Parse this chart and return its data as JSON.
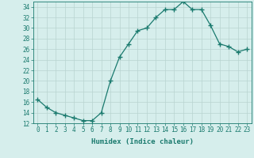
{
  "x": [
    0,
    1,
    2,
    3,
    4,
    5,
    6,
    7,
    8,
    9,
    10,
    11,
    12,
    13,
    14,
    15,
    16,
    17,
    18,
    19,
    20,
    21,
    22,
    23
  ],
  "y": [
    16.5,
    15.0,
    14.0,
    13.5,
    13.0,
    12.5,
    12.5,
    14.0,
    20.0,
    24.5,
    27.0,
    29.5,
    30.0,
    32.0,
    33.5,
    33.5,
    35.0,
    33.5,
    33.5,
    30.5,
    27.0,
    26.5,
    25.5,
    26.0
  ],
  "line_color": "#1a7a6e",
  "marker": "+",
  "marker_size": 4,
  "bg_color": "#d6eeec",
  "grid_color": "#b8d4d0",
  "xlabel": "Humidex (Indice chaleur)",
  "xlim": [
    -0.5,
    23.5
  ],
  "ylim": [
    12,
    35
  ],
  "yticks": [
    12,
    14,
    16,
    18,
    20,
    22,
    24,
    26,
    28,
    30,
    32,
    34
  ],
  "xticks": [
    0,
    1,
    2,
    3,
    4,
    5,
    6,
    7,
    8,
    9,
    10,
    11,
    12,
    13,
    14,
    15,
    16,
    17,
    18,
    19,
    20,
    21,
    22,
    23
  ],
  "xtick_labels": [
    "0",
    "1",
    "2",
    "3",
    "4",
    "5",
    "6",
    "7",
    "8",
    "9",
    "10",
    "11",
    "12",
    "13",
    "14",
    "15",
    "16",
    "17",
    "18",
    "19",
    "20",
    "21",
    "22",
    "23"
  ],
  "label_fontsize": 6.5,
  "tick_fontsize": 5.5
}
